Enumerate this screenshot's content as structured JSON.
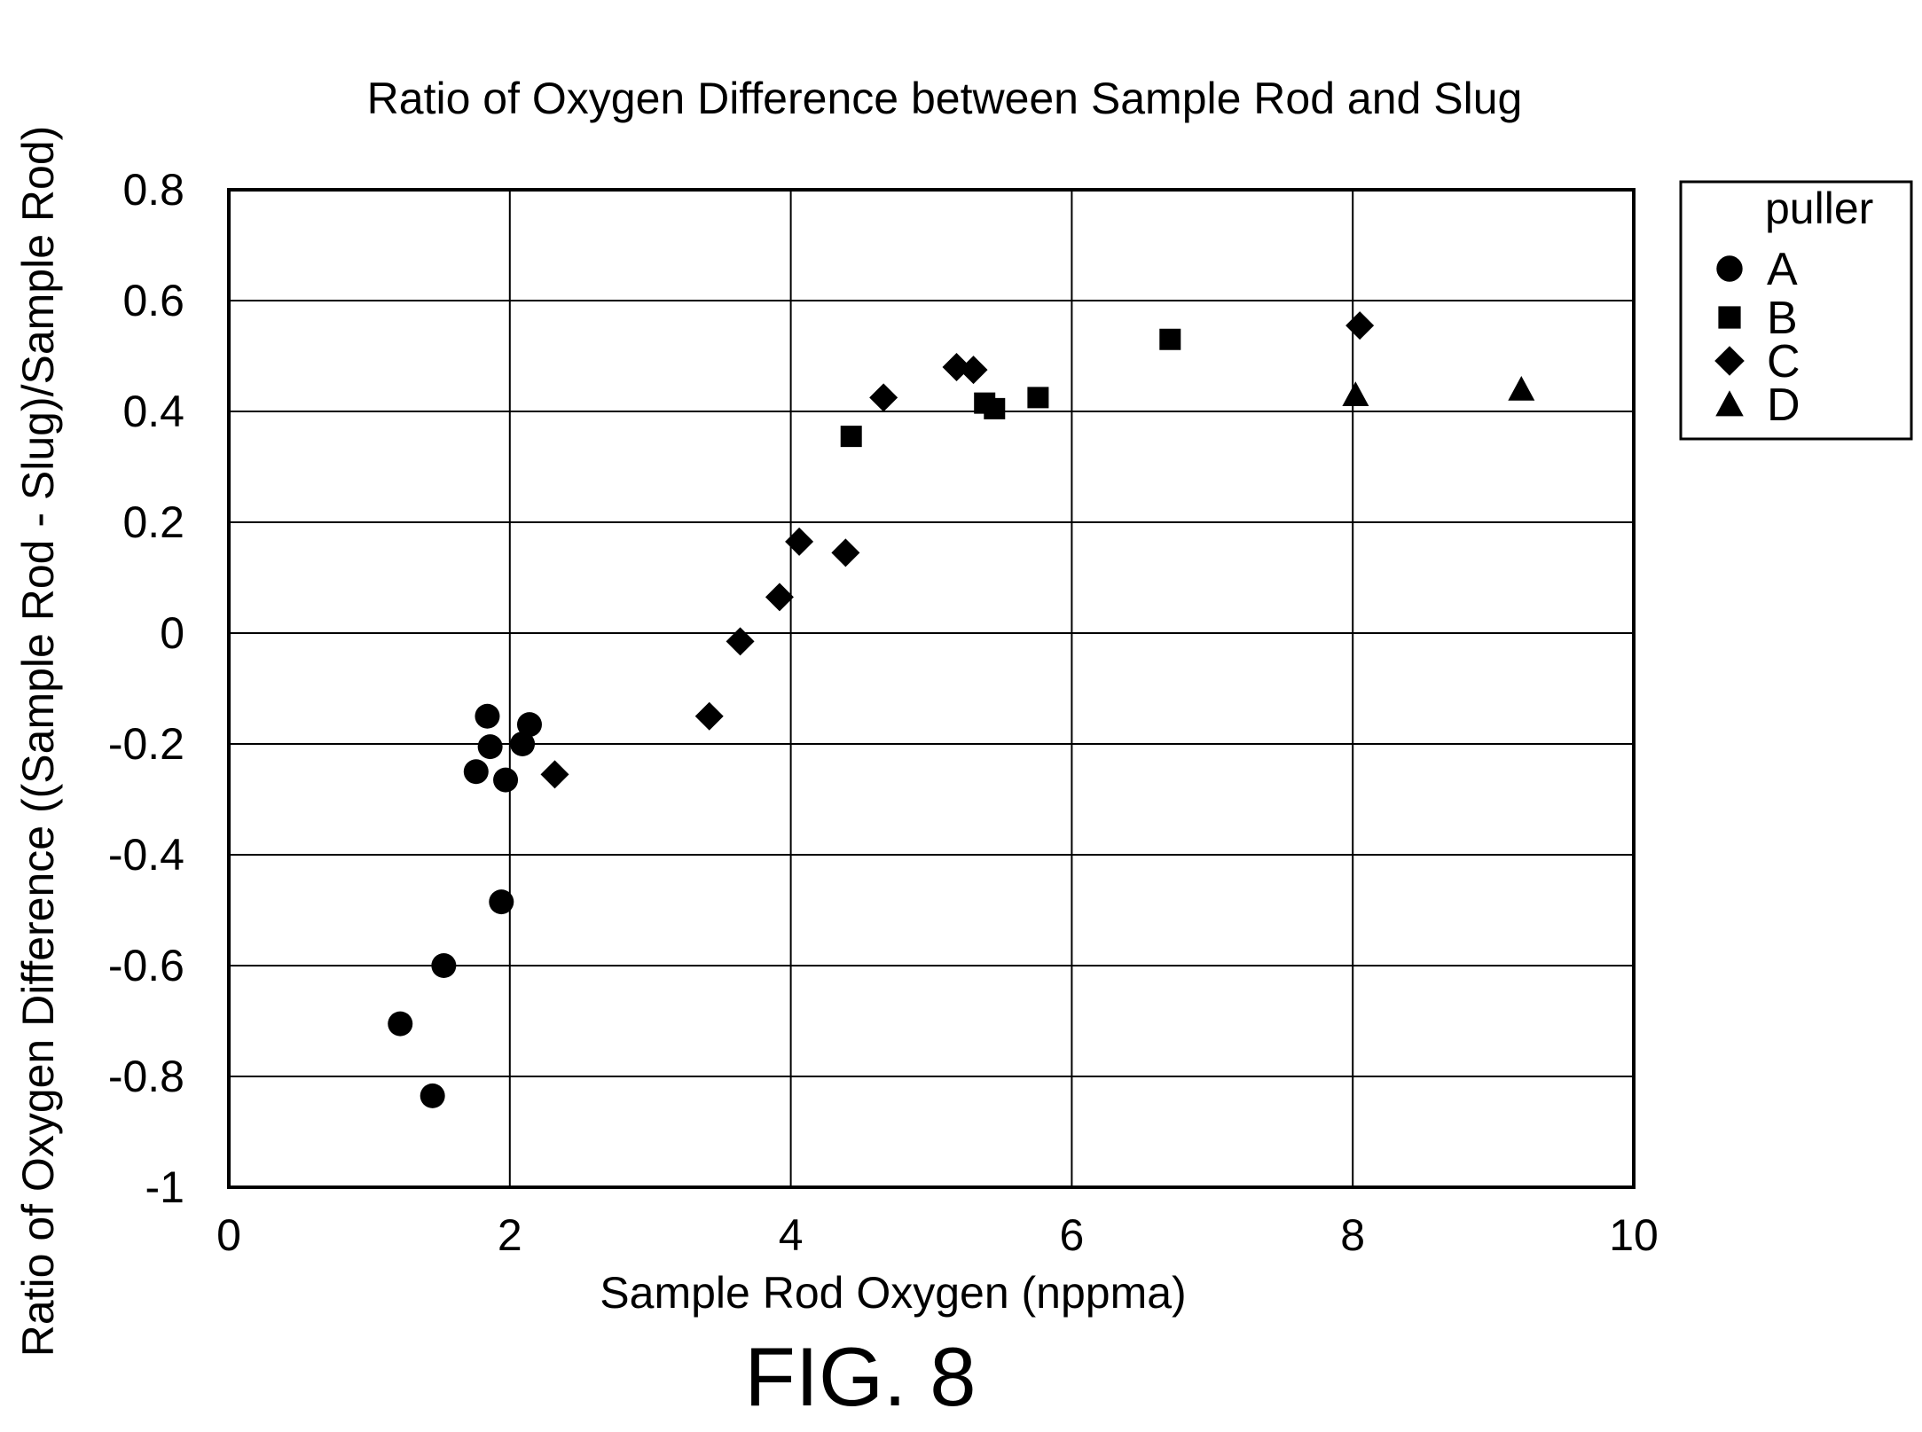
{
  "chart_data": {
    "type": "scatter",
    "title": "Ratio of Oxygen Difference between Sample Rod and Slug",
    "xlabel": "Sample Rod Oxygen (nppma)",
    "ylabel": "Ratio of Oxygen Difference ((Sample Rod - Slug)/Sample Rod)",
    "xlim": [
      0,
      10
    ],
    "ylim": [
      -1,
      0.8
    ],
    "x_ticks": [
      0,
      2,
      4,
      6,
      8,
      10
    ],
    "y_ticks": [
      0.8,
      0.6,
      0.4,
      0.2,
      0,
      -0.2,
      -0.4,
      -0.6,
      -0.8,
      -1
    ],
    "x_tick_labels": [
      "0",
      "2",
      "4",
      "6",
      "8",
      "10"
    ],
    "y_tick_labels": [
      "0.8",
      "0.6",
      "0.4",
      "0.2",
      "0",
      "-0.2",
      "-0.4",
      "-0.6",
      "-0.8",
      "-1"
    ],
    "grid": true,
    "legend": {
      "title": "puller",
      "position": "right-top"
    },
    "series": [
      {
        "name": "A",
        "marker": "circle",
        "points": [
          [
            1.22,
            -0.705
          ],
          [
            1.45,
            -0.835
          ],
          [
            1.53,
            -0.6
          ],
          [
            1.76,
            -0.25
          ],
          [
            1.84,
            -0.15
          ],
          [
            1.86,
            -0.205
          ],
          [
            1.94,
            -0.485
          ],
          [
            1.97,
            -0.265
          ],
          [
            2.09,
            -0.2
          ],
          [
            2.14,
            -0.165
          ]
        ]
      },
      {
        "name": "B",
        "marker": "square",
        "points": [
          [
            4.43,
            0.355
          ],
          [
            5.38,
            0.415
          ],
          [
            5.45,
            0.405
          ],
          [
            5.76,
            0.425
          ],
          [
            6.7,
            0.53
          ]
        ]
      },
      {
        "name": "C",
        "marker": "diamond",
        "points": [
          [
            2.32,
            -0.255
          ],
          [
            3.42,
            -0.15
          ],
          [
            3.64,
            -0.015
          ],
          [
            3.92,
            0.065
          ],
          [
            4.06,
            0.165
          ],
          [
            4.39,
            0.145
          ],
          [
            4.66,
            0.425
          ],
          [
            5.18,
            0.48
          ],
          [
            5.3,
            0.475
          ],
          [
            8.05,
            0.555
          ]
        ]
      },
      {
        "name": "D",
        "marker": "triangle",
        "points": [
          [
            8.02,
            0.43
          ],
          [
            9.2,
            0.44
          ]
        ]
      }
    ]
  },
  "figure_label": "FIG. 8"
}
